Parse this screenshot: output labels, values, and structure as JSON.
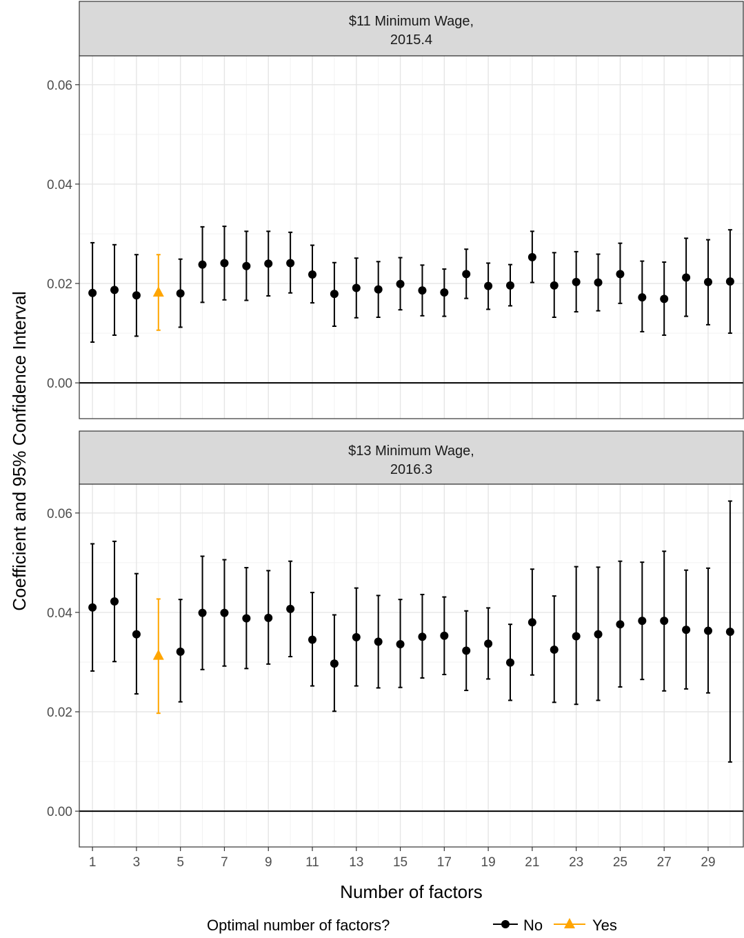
{
  "chart_data": {
    "type": "scatter",
    "ylabel": "Coefficient and 95% Confidence Interval",
    "xlabel": "Number of factors",
    "x_ticks": [
      "1",
      "3",
      "5",
      "7",
      "9",
      "11",
      "13",
      "15",
      "17",
      "19",
      "21",
      "23",
      "25",
      "27",
      "29"
    ],
    "y_ticks": [
      "0.00",
      "0.02",
      "0.04",
      "0.06"
    ],
    "xlim": [
      0.4,
      30.6
    ],
    "ylim": [
      -0.0072,
      0.0658
    ],
    "grid": true,
    "reference_line_y": 0,
    "legend": {
      "title": "Optimal number of factors?",
      "position": "bottom",
      "entries": [
        {
          "label": "No",
          "color": "#000000",
          "shape": "circle"
        },
        {
          "label": "Yes",
          "color": "#FFA500",
          "shape": "triangle"
        }
      ]
    },
    "panels": [
      {
        "strip_line1": "$11 Minimum Wage,",
        "strip_line2": "2015.4",
        "optimal_x": 4,
        "x": [
          1,
          2,
          3,
          4,
          5,
          6,
          7,
          8,
          9,
          10,
          11,
          12,
          13,
          14,
          15,
          16,
          17,
          18,
          19,
          20,
          21,
          22,
          23,
          24,
          25,
          26,
          27,
          28,
          29,
          30
        ],
        "estimate": [
          0.0181,
          0.0187,
          0.0176,
          0.0182,
          0.018,
          0.0238,
          0.0241,
          0.0235,
          0.024,
          0.0241,
          0.0218,
          0.0179,
          0.0191,
          0.0188,
          0.0199,
          0.0186,
          0.0182,
          0.0219,
          0.0195,
          0.0196,
          0.0253,
          0.0196,
          0.0203,
          0.0202,
          0.0219,
          0.0172,
          0.0169,
          0.0212,
          0.0203,
          0.0204
        ],
        "lower": [
          0.0082,
          0.0096,
          0.0094,
          0.0106,
          0.0112,
          0.0162,
          0.0167,
          0.0166,
          0.0175,
          0.0181,
          0.0161,
          0.0114,
          0.0131,
          0.0132,
          0.0147,
          0.0135,
          0.0134,
          0.017,
          0.0148,
          0.0155,
          0.0202,
          0.0132,
          0.0143,
          0.0145,
          0.016,
          0.0103,
          0.0096,
          0.0134,
          0.0117,
          0.01
        ],
        "upper": [
          0.0282,
          0.0278,
          0.0258,
          0.0258,
          0.0249,
          0.0314,
          0.0315,
          0.0305,
          0.0305,
          0.0303,
          0.0277,
          0.0242,
          0.0251,
          0.0244,
          0.0252,
          0.0237,
          0.0229,
          0.0269,
          0.0241,
          0.0238,
          0.0305,
          0.0262,
          0.0264,
          0.0259,
          0.0281,
          0.0245,
          0.0243,
          0.0291,
          0.0288,
          0.0308
        ]
      },
      {
        "strip_line1": "$13 Minimum Wage,",
        "strip_line2": "2016.3",
        "optimal_x": 4,
        "x": [
          1,
          2,
          3,
          4,
          5,
          6,
          7,
          8,
          9,
          10,
          11,
          12,
          13,
          14,
          15,
          16,
          17,
          18,
          19,
          20,
          21,
          22,
          23,
          24,
          25,
          26,
          27,
          28,
          29,
          30
        ],
        "estimate": [
          0.041,
          0.0422,
          0.0356,
          0.0313,
          0.0321,
          0.0399,
          0.0399,
          0.0388,
          0.0389,
          0.0407,
          0.0345,
          0.0297,
          0.035,
          0.0341,
          0.0336,
          0.0351,
          0.0353,
          0.0323,
          0.0337,
          0.0299,
          0.038,
          0.0325,
          0.0352,
          0.0356,
          0.0376,
          0.0383,
          0.0383,
          0.0365,
          0.0363,
          0.0361
        ],
        "lower": [
          0.0282,
          0.0301,
          0.0236,
          0.0197,
          0.022,
          0.0285,
          0.0292,
          0.0287,
          0.0296,
          0.0311,
          0.0252,
          0.0201,
          0.0252,
          0.0248,
          0.0249,
          0.0268,
          0.0275,
          0.0243,
          0.0266,
          0.0223,
          0.0274,
          0.0219,
          0.0215,
          0.0223,
          0.025,
          0.0265,
          0.0242,
          0.0246,
          0.0238,
          0.0099
        ],
        "upper": [
          0.0538,
          0.0543,
          0.0478,
          0.0427,
          0.0426,
          0.0513,
          0.0506,
          0.049,
          0.0484,
          0.0503,
          0.044,
          0.0395,
          0.0449,
          0.0434,
          0.0426,
          0.0436,
          0.0431,
          0.0403,
          0.0409,
          0.0376,
          0.0487,
          0.0433,
          0.0492,
          0.0491,
          0.0503,
          0.0501,
          0.0523,
          0.0485,
          0.0489,
          0.0624
        ]
      }
    ]
  }
}
